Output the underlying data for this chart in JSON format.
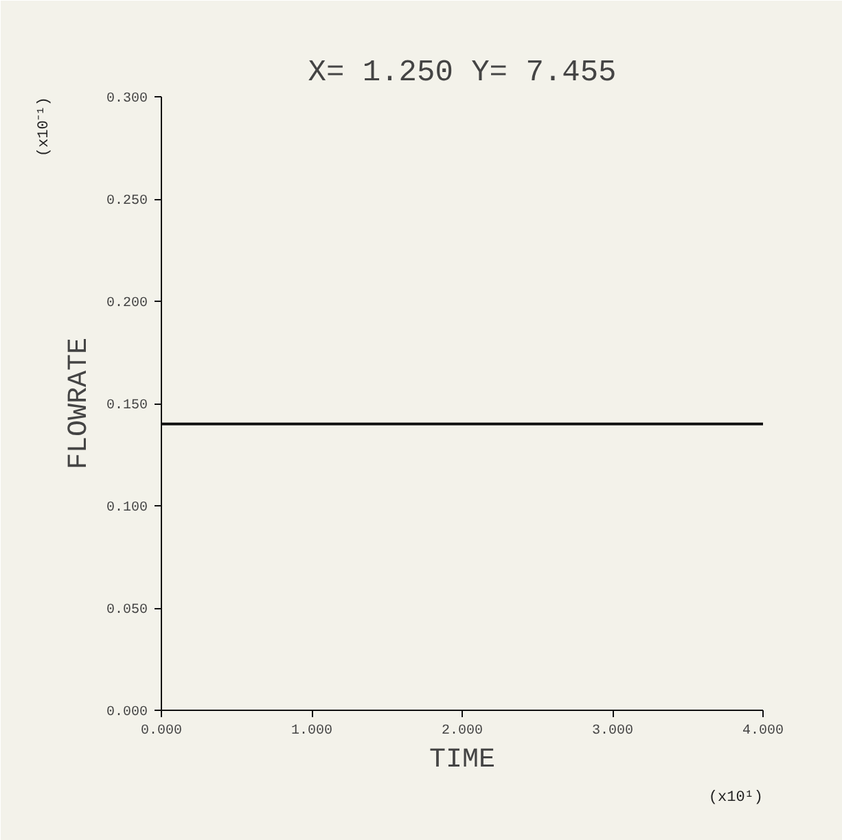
{
  "chart_data": {
    "type": "line",
    "title": "X= 1.250 Y= 7.455",
    "xlabel": "TIME",
    "ylabel": "FLOWRATE",
    "x": [
      0,
      4
    ],
    "series": [
      {
        "color": "#111111",
        "values": [
          0.14,
          0.14
        ]
      }
    ],
    "xlim": [
      0,
      4
    ],
    "ylim": [
      0,
      0.3
    ],
    "xticks": [
      {
        "value": 0,
        "label": "0.000"
      },
      {
        "value": 1,
        "label": "1.000"
      },
      {
        "value": 2,
        "label": "2.000"
      },
      {
        "value": 3,
        "label": "3.000"
      },
      {
        "value": 4,
        "label": "4.000"
      }
    ],
    "yticks": [
      {
        "value": 0,
        "label": "0.000"
      },
      {
        "value": 0.05,
        "label": "0.050"
      },
      {
        "value": 0.1,
        "label": "0.100"
      },
      {
        "value": 0.15,
        "label": "0.150"
      },
      {
        "value": 0.2,
        "label": "0.200"
      },
      {
        "value": 0.25,
        "label": "0.250"
      },
      {
        "value": 0.3,
        "label": "0.300"
      }
    ],
    "annotations": [
      "(x10⁻¹)",
      "(x10¹)"
    ],
    "grid": false
  }
}
